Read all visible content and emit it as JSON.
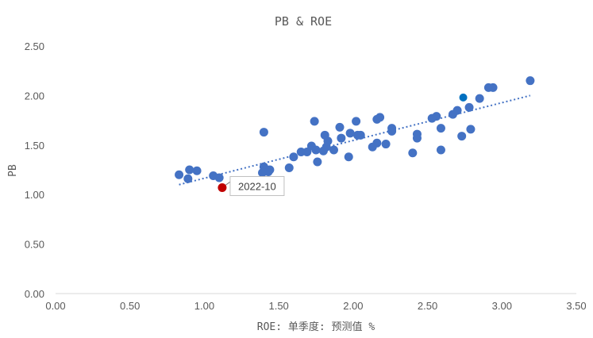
{
  "chart_data": {
    "type": "scatter",
    "title": "PB & ROE",
    "xlabel": "ROE: 单季度: 预测值 %",
    "ylabel": "PB",
    "xlim": [
      0,
      3.5
    ],
    "ylim": [
      0,
      2.5
    ],
    "xticks": [
      "0.00",
      "0.50",
      "1.00",
      "1.50",
      "2.00",
      "2.50",
      "3.00",
      "3.50"
    ],
    "yticks": [
      "0.00",
      "0.50",
      "1.00",
      "1.50",
      "2.00",
      "2.50"
    ],
    "grid": false,
    "colors": {
      "points": "#4472c4",
      "trend": "#4472c4",
      "highlight": "#c00000",
      "highlight_recent": "#0070c0",
      "text": "#595959"
    },
    "series": [
      {
        "points": [
          [
            0.83,
            1.2
          ],
          [
            0.89,
            1.16
          ],
          [
            0.9,
            1.25
          ],
          [
            0.95,
            1.24
          ],
          [
            1.06,
            1.19
          ],
          [
            1.1,
            1.17
          ],
          [
            1.39,
            1.22
          ],
          [
            1.4,
            1.28
          ],
          [
            1.4,
            1.63
          ],
          [
            1.43,
            1.23
          ],
          [
            1.44,
            1.25
          ],
          [
            1.57,
            1.27
          ],
          [
            1.6,
            1.38
          ],
          [
            1.65,
            1.43
          ],
          [
            1.69,
            1.43
          ],
          [
            1.72,
            1.49
          ],
          [
            1.74,
            1.74
          ],
          [
            1.75,
            1.45
          ],
          [
            1.76,
            1.33
          ],
          [
            1.8,
            1.44
          ],
          [
            1.81,
            1.6
          ],
          [
            1.82,
            1.48
          ],
          [
            1.83,
            1.54
          ],
          [
            1.87,
            1.45
          ],
          [
            1.91,
            1.68
          ],
          [
            1.92,
            1.57
          ],
          [
            1.97,
            1.38
          ],
          [
            1.98,
            1.62
          ],
          [
            2.02,
            1.74
          ],
          [
            2.03,
            1.6
          ],
          [
            2.05,
            1.6
          ],
          [
            2.13,
            1.48
          ],
          [
            2.16,
            1.52
          ],
          [
            2.16,
            1.76
          ],
          [
            2.18,
            1.78
          ],
          [
            2.22,
            1.51
          ],
          [
            2.26,
            1.67
          ],
          [
            2.26,
            1.64
          ],
          [
            2.4,
            1.42
          ],
          [
            2.43,
            1.57
          ],
          [
            2.43,
            1.61
          ],
          [
            2.53,
            1.77
          ],
          [
            2.56,
            1.79
          ],
          [
            2.59,
            1.45
          ],
          [
            2.59,
            1.67
          ],
          [
            2.67,
            1.81
          ],
          [
            2.7,
            1.85
          ],
          [
            2.73,
            1.59
          ],
          [
            2.78,
            1.88
          ],
          [
            2.79,
            1.66
          ],
          [
            2.85,
            1.97
          ],
          [
            2.91,
            2.08
          ],
          [
            2.94,
            2.08
          ],
          [
            3.19,
            2.15
          ]
        ]
      }
    ],
    "highlight": {
      "x": 1.12,
      "y": 1.07,
      "label": "2022-10"
    },
    "highlight_recent": {
      "x": 2.74,
      "y": 1.98
    },
    "trendline": {
      "x": [
        0.83,
        3.19
      ],
      "y": [
        1.1,
        2.0
      ],
      "style": "dotted"
    }
  }
}
